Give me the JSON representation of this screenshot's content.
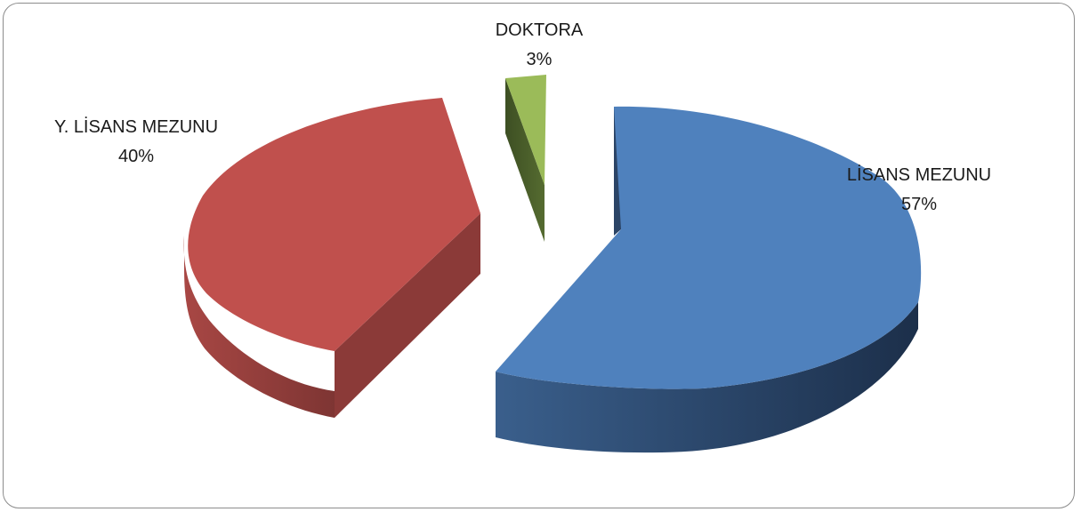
{
  "chart_data": {
    "type": "pie",
    "style": "3d-exploded",
    "slices": [
      {
        "label": "LİSANS MEZUNU",
        "value": 57,
        "value_label": "57%",
        "color": "#4f81bd"
      },
      {
        "label": "Y. LİSANS MEZUNU",
        "value": 40,
        "value_label": "40%",
        "color": "#c0504d"
      },
      {
        "label": "DOKTORA",
        "value": 3,
        "value_label": "3%",
        "color": "#9bbb59"
      }
    ],
    "legend": "none",
    "data_labels": "category and percentage, outside slices"
  }
}
